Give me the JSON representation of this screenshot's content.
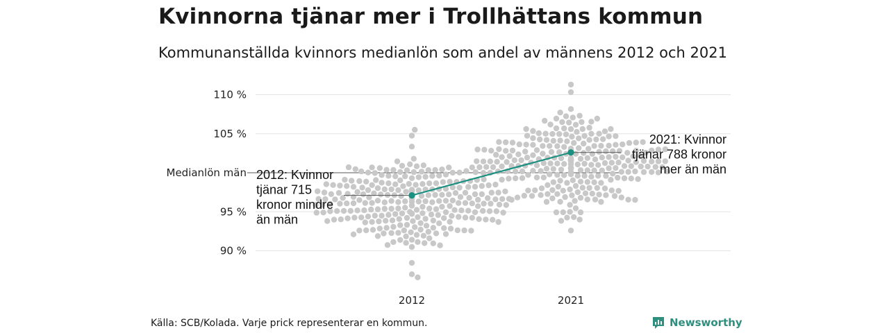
{
  "title": "Kvinnorna tjänar mer i Trollhättans kommun",
  "subtitle": "Kommunanställda kvinnors medianlön som andel av männens 2012 och 2021",
  "source": "Källa: SCB/Kolada. Varje prick representerar en kommun.",
  "brand": "Newsworthy",
  "colors": {
    "dots": "#c8c8c8",
    "highlight": "#1a9080",
    "grid": "#e3e3e3",
    "reference": "#555555"
  },
  "chart_data": {
    "type": "scatter",
    "style": "beeswarm",
    "categories": [
      "2012",
      "2021"
    ],
    "y_tick_labels": [
      "110 %",
      "105 %",
      "95 %",
      "90 %"
    ],
    "y_ticks": [
      110,
      105,
      95,
      90
    ],
    "ylim": [
      86,
      112
    ],
    "reference_line": {
      "value": 100,
      "label": "Medianlön män"
    },
    "highlight": {
      "series": [
        {
          "x": "2012",
          "y": 97.1
        },
        {
          "x": "2021",
          "y": 102.6
        }
      ],
      "labels": [
        [
          "2012: Kvinnor",
          "tjänar 715",
          "kronor mindre",
          "än män"
        ],
        [
          "2021: Kvinnor",
          "tjänar 788 kronor",
          "mer än män"
        ]
      ]
    },
    "distribution": {
      "2012": {
        "count": 290,
        "min": 86.6,
        "max": 105.5,
        "median": 96.3
      },
      "2021": {
        "count": 290,
        "min": 92.6,
        "max": 111.3,
        "median": 101.1
      }
    },
    "grid": true,
    "legend": "none"
  }
}
